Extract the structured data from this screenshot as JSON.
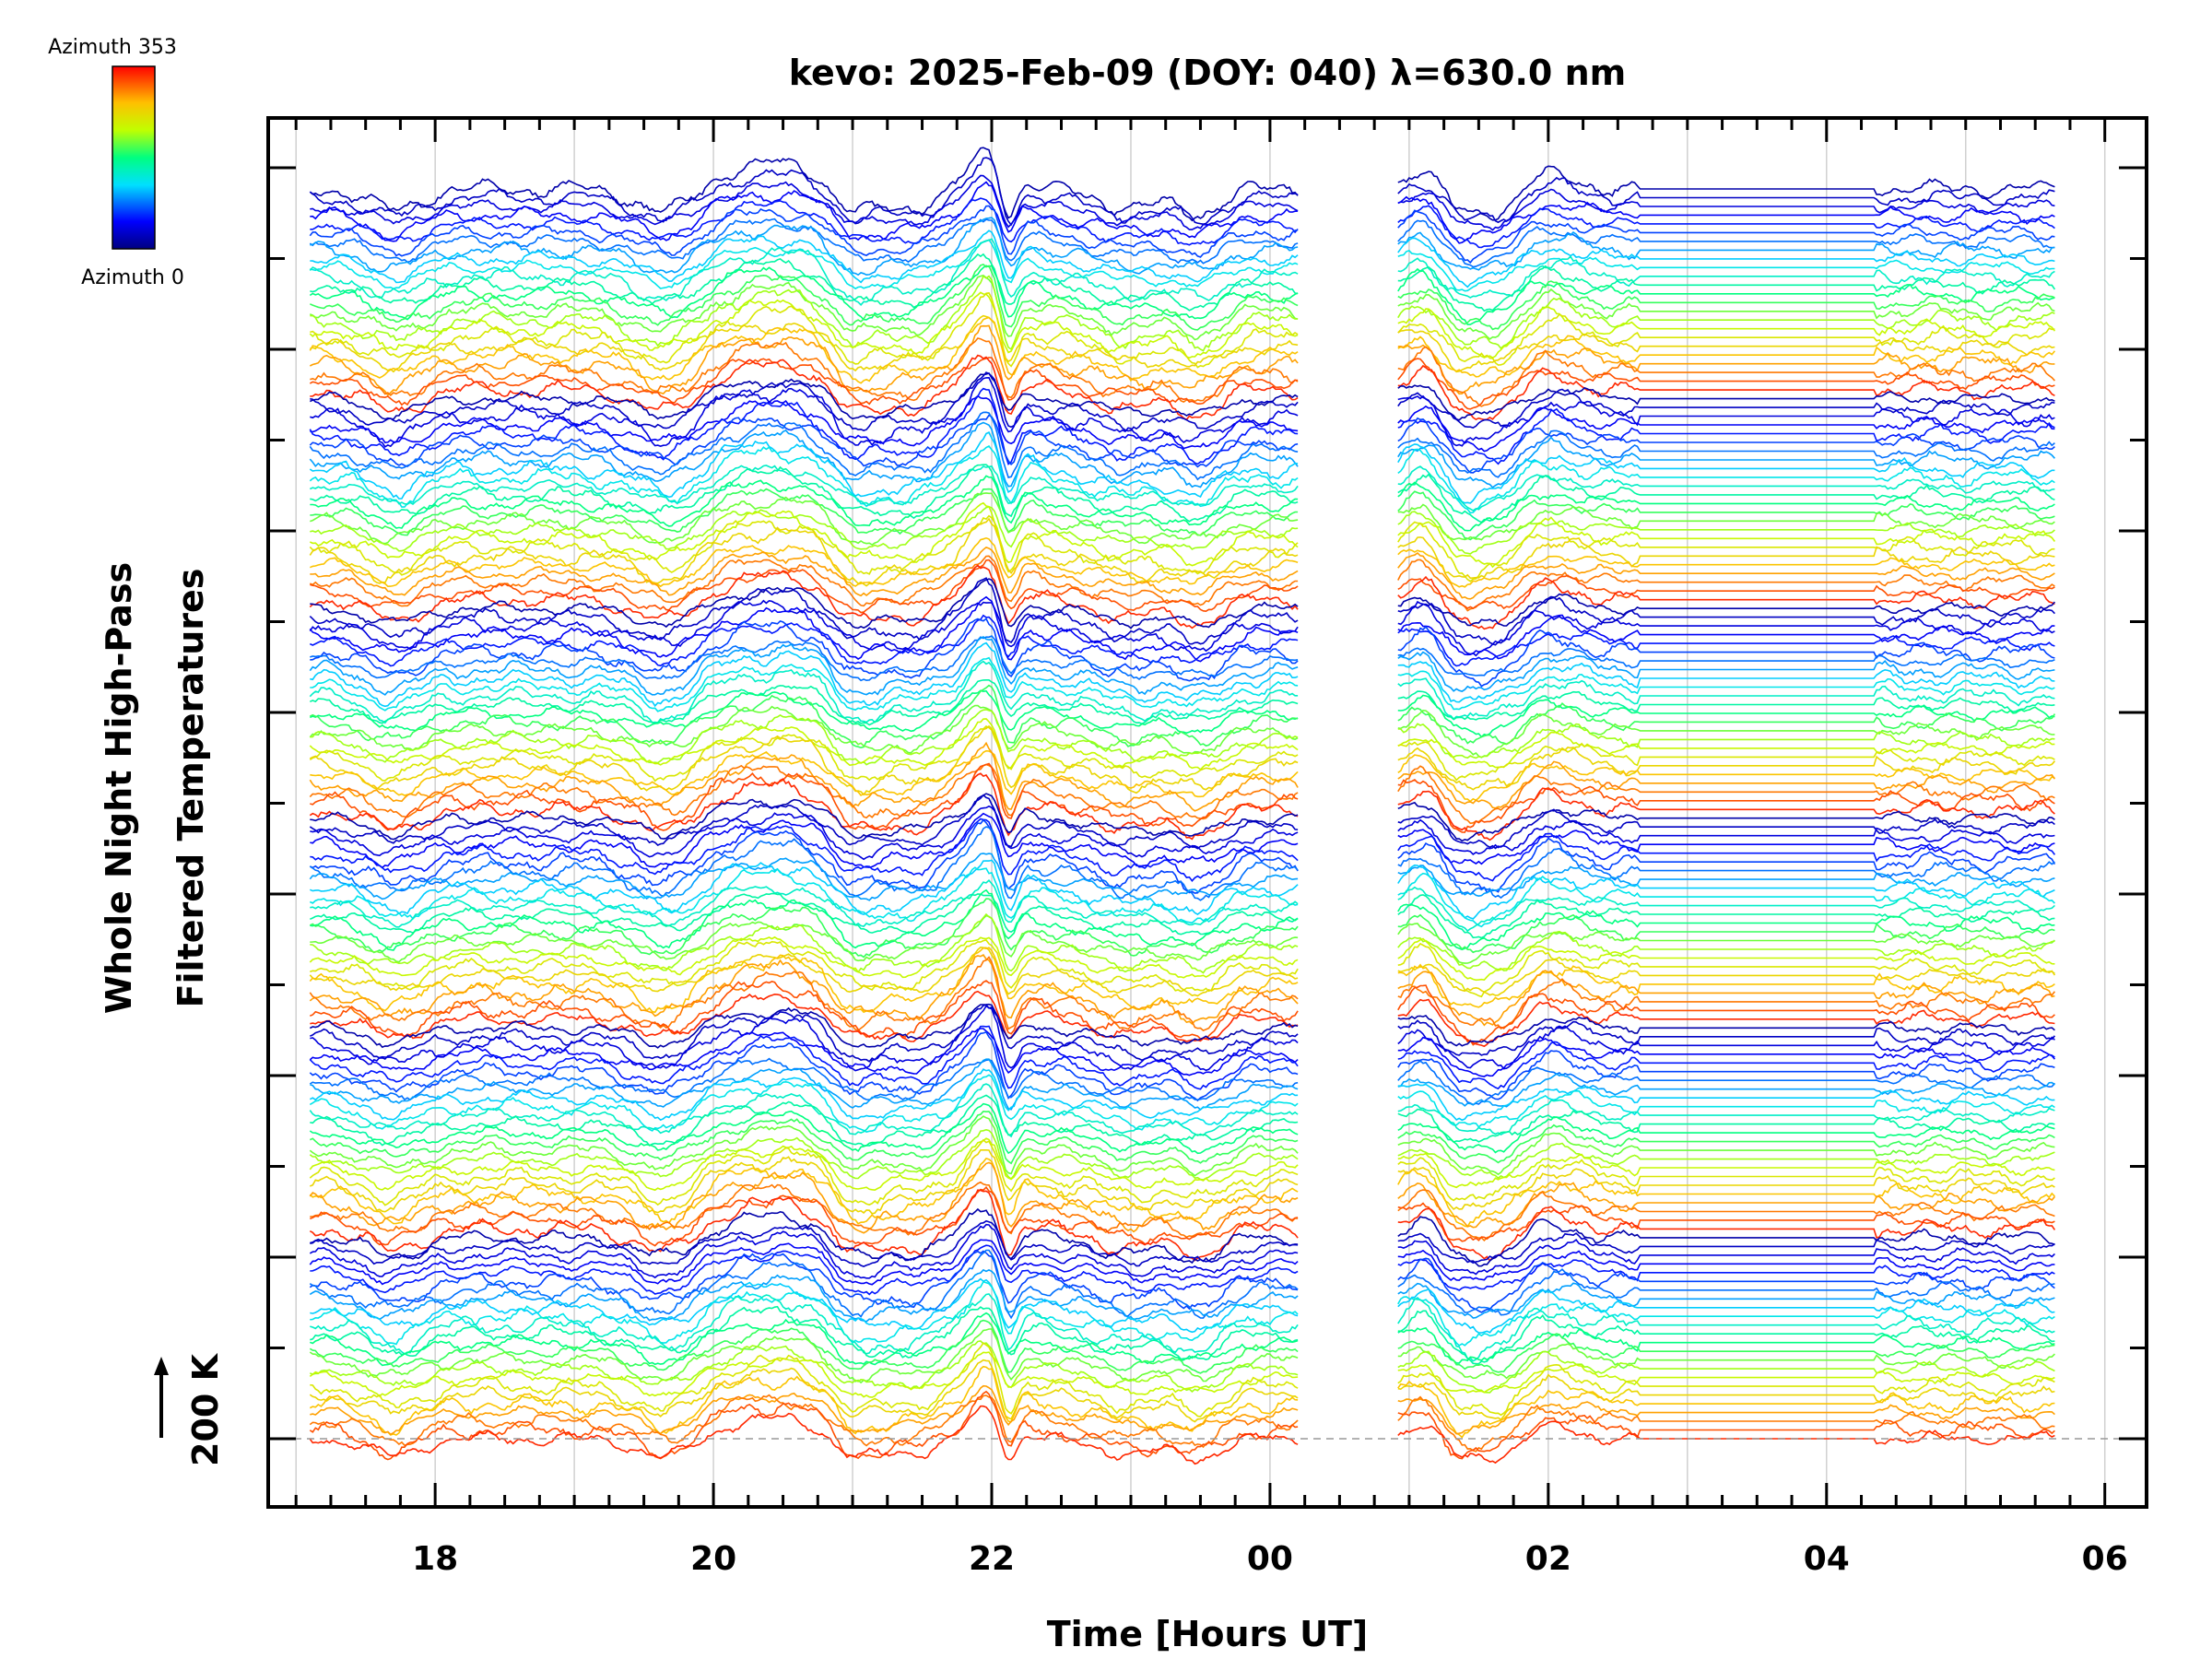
{
  "chart_data": {
    "type": "line",
    "title": "kevo: 2025-Feb-09 (DOY: 040) λ=630.0 nm",
    "xlabel": "Time [Hours UT]",
    "ylabel_line1": "Whole Night High-Pass",
    "ylabel_line2": "Filtered Temperatures",
    "scale_label": "200 K",
    "x_tick_labels": [
      "18",
      "20",
      "22",
      "00",
      "02",
      "04",
      "06"
    ],
    "x_range_hours": [
      16.8,
      30.3
    ],
    "data_range_hours": [
      17.1,
      29.65
    ],
    "gap_hours": [
      24.2,
      24.9
    ],
    "sparse_range_hours": [
      26.65,
      28.35
    ],
    "colorbar": {
      "top_label": "Azimuth  353",
      "bottom_label": "Azimuth  0",
      "min_azimuth": 0,
      "max_azimuth": 353
    },
    "series_groups": 6,
    "traces_per_group": 24,
    "series_description": "Stacked high-pass filtered temperature traces colored by azimuth (0-353°); common events near 19:7, 20:6, 21:0, 22:0 and a sharp dip near 22:1 UT",
    "colors": {
      "axis": "#000000",
      "grid": "#cccccc",
      "baseline": "#999999"
    }
  }
}
